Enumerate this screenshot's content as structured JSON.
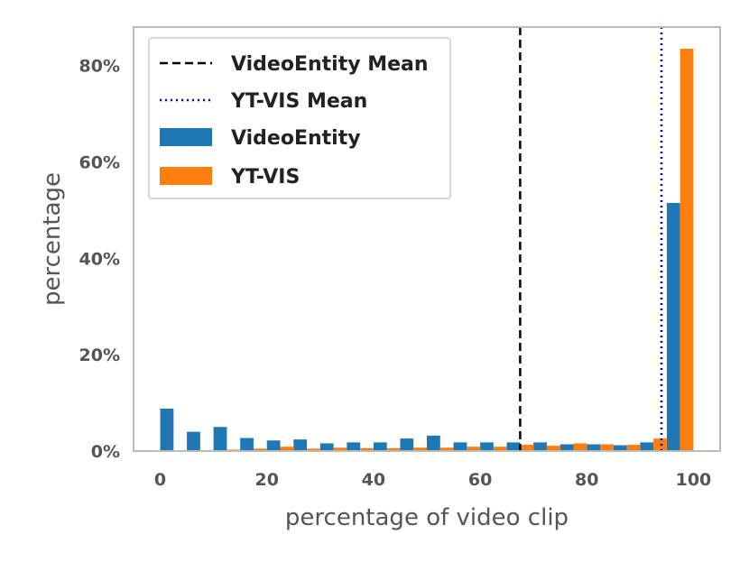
{
  "chart_data": {
    "type": "bar",
    "xlabel": "percentage of video clip",
    "ylabel": "percentage",
    "xlim": [
      -5,
      105
    ],
    "ylim": [
      0,
      88
    ],
    "bin_width": 5,
    "bin_starts": [
      0,
      5,
      10,
      15,
      20,
      25,
      30,
      35,
      40,
      45,
      50,
      55,
      60,
      65,
      70,
      75,
      80,
      85,
      90,
      95
    ],
    "x_ticks": [
      0,
      20,
      40,
      60,
      80,
      100
    ],
    "x_tick_labels": [
      "0",
      "20",
      "40",
      "60",
      "80",
      "100"
    ],
    "y_ticks": [
      0,
      20,
      40,
      60,
      80
    ],
    "y_tick_labels": [
      "0%",
      "20%",
      "40%",
      "60%",
      "80%"
    ],
    "grid": false,
    "legend_position": "top-left",
    "series": [
      {
        "name": "VideoEntity",
        "color": "#1f77b4",
        "values": [
          8.8,
          4.0,
          5.0,
          2.7,
          2.2,
          2.4,
          1.6,
          1.8,
          1.8,
          2.6,
          3.2,
          1.8,
          1.8,
          1.8,
          1.8,
          1.4,
          1.4,
          1.2,
          1.8,
          51.5
        ]
      },
      {
        "name": "YT-VIS",
        "color": "#ff7f0e",
        "values": [
          0.0,
          0.0,
          0.3,
          0.5,
          0.9,
          0.5,
          0.7,
          0.6,
          0.6,
          0.7,
          0.7,
          0.9,
          0.9,
          1.3,
          1.1,
          1.6,
          1.4,
          1.3,
          2.6,
          83.5
        ]
      }
    ],
    "mean_lines": [
      {
        "name": "VideoEntity Mean",
        "x": 67.5,
        "color": "#000000",
        "style": "dashed"
      },
      {
        "name": "YT-VIS Mean",
        "x": 94.0,
        "color": "#0000cc",
        "style": "dotted"
      }
    ]
  }
}
